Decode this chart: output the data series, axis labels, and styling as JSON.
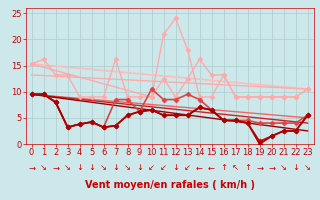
{
  "xlabel": "Vent moyen/en rafales ( km/h )",
  "background_color": "#cce8ea",
  "grid_color": "#aacccc",
  "xlim": [
    -0.5,
    23.5
  ],
  "ylim": [
    0,
    26
  ],
  "yticks": [
    0,
    5,
    10,
    15,
    20,
    25
  ],
  "xticks": [
    0,
    1,
    2,
    3,
    4,
    5,
    6,
    7,
    8,
    9,
    10,
    11,
    12,
    13,
    14,
    15,
    16,
    17,
    18,
    19,
    20,
    21,
    22,
    23
  ],
  "lines": [
    {
      "x": [
        0,
        1,
        2,
        3,
        4,
        5,
        6,
        7,
        8,
        9,
        10,
        11,
        12,
        13,
        14,
        15,
        16,
        17,
        18,
        19,
        20,
        21,
        22,
        23
      ],
      "y": [
        15.3,
        16.2,
        13.2,
        13.2,
        9.0,
        9.0,
        9.0,
        16.2,
        9.0,
        9.0,
        9.0,
        12.5,
        9.0,
        12.5,
        16.2,
        13.2,
        13.2,
        9.0,
        9.0,
        9.0,
        9.0,
        9.0,
        9.0,
        10.5
      ],
      "color": "#ffaaaa",
      "lw": 1.0,
      "marker": "D",
      "ms": 2.5,
      "linestyle": "-",
      "connect_all": true
    },
    {
      "x": [
        0,
        10,
        11,
        12,
        13,
        14,
        15,
        16,
        17,
        18,
        19,
        20,
        21,
        22,
        23
      ],
      "y": [
        15.3,
        9.0,
        21.0,
        24.0,
        18.0,
        9.0,
        9.0,
        13.2,
        9.0,
        9.0,
        9.0,
        9.0,
        9.0,
        9.0,
        10.5
      ],
      "color": "#ffaaaa",
      "lw": 1.0,
      "marker": "D",
      "ms": 2.5,
      "linestyle": "-",
      "connect_all": true
    },
    {
      "x": [
        0,
        23
      ],
      "y": [
        15.3,
        10.5
      ],
      "color": "#ffbbbb",
      "lw": 1.2,
      "marker": null,
      "ms": 0,
      "linestyle": "-",
      "connect_all": true
    },
    {
      "x": [
        0,
        23
      ],
      "y": [
        13.2,
        10.5
      ],
      "color": "#ffaaaa",
      "lw": 1.0,
      "marker": null,
      "ms": 0,
      "linestyle": "-",
      "connect_all": true
    },
    {
      "x": [
        0,
        1,
        2,
        3,
        4,
        5,
        6,
        7,
        8,
        9,
        10,
        11,
        12,
        13,
        14,
        15,
        16,
        17,
        18,
        19,
        20,
        21,
        22,
        23
      ],
      "y": [
        9.5,
        9.5,
        8.0,
        3.2,
        3.8,
        4.2,
        3.2,
        8.5,
        8.5,
        6.2,
        10.5,
        8.5,
        8.5,
        9.5,
        8.5,
        6.5,
        4.5,
        4.5,
        4.5,
        4.0,
        4.0,
        4.0,
        4.0,
        5.5
      ],
      "color": "#dd4444",
      "lw": 1.2,
      "marker": "D",
      "ms": 2.5,
      "linestyle": "-",
      "connect_all": true
    },
    {
      "x": [
        0,
        1,
        2,
        3,
        4,
        5,
        6,
        7,
        8,
        9,
        10,
        11,
        12,
        13,
        14,
        15,
        16,
        17,
        18,
        19,
        20,
        21,
        22,
        23
      ],
      "y": [
        9.5,
        9.5,
        8.0,
        3.2,
        3.8,
        4.2,
        3.2,
        3.5,
        5.5,
        6.2,
        6.5,
        5.5,
        5.5,
        5.5,
        7.0,
        6.5,
        4.5,
        4.5,
        4.0,
        0.5,
        1.5,
        2.5,
        2.5,
        5.5
      ],
      "color": "#cc0000",
      "lw": 1.2,
      "marker": "D",
      "ms": 2.5,
      "linestyle": "-",
      "connect_all": true
    },
    {
      "x": [
        0,
        1,
        2,
        3,
        4,
        5,
        6,
        7,
        8,
        9,
        10,
        11,
        12,
        13,
        14,
        15,
        16,
        17,
        18,
        19,
        20,
        21,
        22,
        23
      ],
      "y": [
        9.5,
        9.5,
        8.0,
        3.2,
        3.8,
        4.2,
        3.2,
        3.5,
        5.5,
        6.2,
        6.5,
        5.5,
        5.5,
        5.5,
        7.0,
        6.5,
        4.5,
        4.5,
        4.0,
        0.0,
        1.5,
        2.5,
        2.5,
        5.5
      ],
      "color": "#aa0000",
      "lw": 1.2,
      "marker": "D",
      "ms": 2.5,
      "linestyle": "-",
      "connect_all": true
    },
    {
      "x": [
        0,
        23
      ],
      "y": [
        9.5,
        5.0
      ],
      "color": "#ee6666",
      "lw": 1.0,
      "marker": null,
      "ms": 0,
      "linestyle": "-",
      "connect_all": true
    },
    {
      "x": [
        0,
        23
      ],
      "y": [
        9.5,
        4.0
      ],
      "color": "#cc2222",
      "lw": 1.0,
      "marker": null,
      "ms": 0,
      "linestyle": "-",
      "connect_all": true
    },
    {
      "x": [
        0,
        23
      ],
      "y": [
        9.5,
        2.5
      ],
      "color": "#990000",
      "lw": 1.0,
      "marker": null,
      "ms": 0,
      "linestyle": "-",
      "connect_all": true
    }
  ],
  "wind_directions": [
    "→",
    "↘",
    "→",
    "↘",
    "↓",
    "↓",
    "↘",
    "↓",
    "↘",
    "↓",
    "↙",
    "↙",
    "↓",
    "↙",
    "←",
    "←",
    "↑",
    "↖",
    "↑",
    "→",
    "→",
    "↘",
    "↓",
    "↘"
  ],
  "xlabel_color": "#cc0000",
  "xlabel_fontsize": 7,
  "tick_color": "#cc0000",
  "tick_fontsize": 6,
  "arrow_fontsize": 6
}
